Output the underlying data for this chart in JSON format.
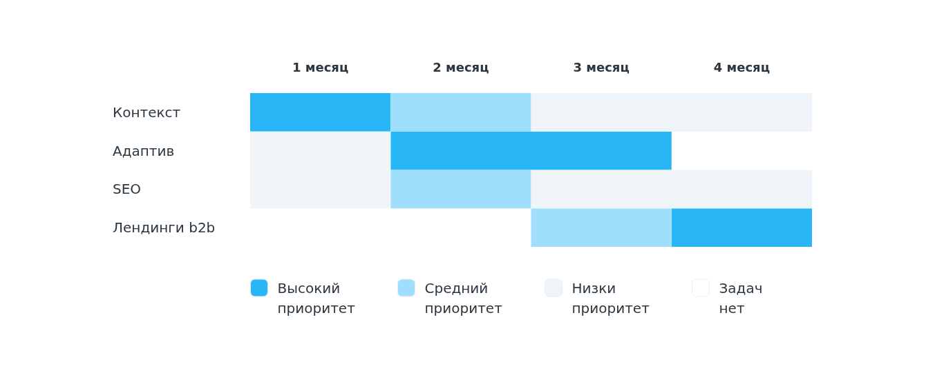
{
  "chart_data": {
    "type": "bar",
    "orientation": "horizontal",
    "categories": [
      "Контекст",
      "Адаптив",
      "SEO",
      "Лендинги b2b"
    ],
    "xlim": [
      0,
      4
    ],
    "xticks": [
      {
        "value": 0.5,
        "label": "1 месяц"
      },
      {
        "value": 1.5,
        "label": "2 месяц"
      },
      {
        "value": 2.5,
        "label": "3 месяц"
      },
      {
        "value": 3.5,
        "label": "4 месяц"
      }
    ],
    "series": [
      {
        "name": "Высокий приоритет",
        "color": "#29b6f6",
        "base": [
          0,
          1,
          null,
          3
        ],
        "values": [
          1,
          2,
          null,
          1
        ]
      },
      {
        "name": "Средний приоритет",
        "color": "#9fdefc",
        "base": [
          1,
          null,
          1,
          2
        ],
        "values": [
          1,
          null,
          1,
          1
        ]
      },
      {
        "name": "Низки приоритет",
        "color": "#eff4f9",
        "base": [
          2,
          0,
          0,
          null
        ],
        "values": [
          2,
          1,
          1,
          null
        ]
      },
      {
        "color": "#eff4f9",
        "base": [
          null,
          null,
          2,
          null
        ],
        "values": [
          null,
          null,
          2,
          null
        ]
      },
      {
        "name": "Задач нет",
        "color": "#ffffff",
        "values": [
          null,
          null,
          null,
          null
        ]
      }
    ],
    "legend": "bottom"
  }
}
